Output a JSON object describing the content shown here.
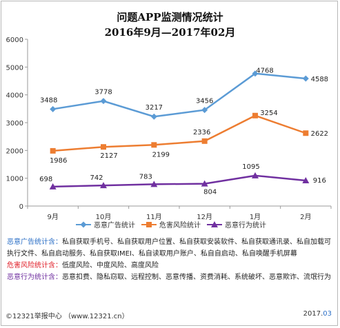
{
  "title": "问题APP监测情况统计",
  "subtitle": "2016年9月—2017年02月",
  "chart_data": {
    "type": "line",
    "categories": [
      "9月",
      "10月",
      "11月",
      "12月",
      "1月",
      "2月"
    ],
    "ylim": [
      0,
      6000
    ],
    "yticks": [
      "0",
      "1000",
      "2000",
      "3000",
      "4000",
      "5000",
      "6000"
    ],
    "grid": false,
    "legend_position": "bottom",
    "series": [
      {
        "name": "恶意广告统计",
        "values": [
          3488,
          3778,
          3217,
          3456,
          4768,
          4588
        ],
        "labels": [
          "3488",
          "3778",
          "3217",
          "3456",
          "4768",
          "4588"
        ],
        "color": "#5b9bd5"
      },
      {
        "name": "危害风险统计",
        "values": [
          1986,
          2127,
          2199,
          2336,
          3254,
          2622
        ],
        "labels": [
          "1986",
          "2127",
          "2199",
          "2336",
          "3254",
          "2622"
        ],
        "color": "#ed7d31"
      },
      {
        "name": "恶意行为统计",
        "values": [
          698,
          742,
          783,
          804,
          1095,
          916
        ],
        "labels": [
          "698",
          "742",
          "783",
          "804",
          "1095",
          "916"
        ],
        "color": "#7030a0"
      }
    ]
  },
  "notes": [
    {
      "key": "恶意广告统计含：",
      "key_color": "#2b6fc6",
      "text": "私自获取手机号、私自获取用户位置、私自获取安装软件、私自获取通讯录、私自加载可执行文件、私自启动服务、私自获取IMEI、私自读取用户账户、私自自启动、私自唤醒手机屏幕"
    },
    {
      "key": "危害风险统计含：",
      "key_color": "#e0202a",
      "text": "低度风险、中度风险、高度风险"
    },
    {
      "key": "恶意行为统计含：",
      "key_color": "#7030a0",
      "text": "恶意扣费、隐私窃取、远程控制、恶意传播、资费消耗、系统破坏、恶意欺诈、流氓行为"
    }
  ],
  "footer": {
    "left": "©12321举报中心  （www.12321.cn）",
    "right_year": "2017.",
    "right_month": "03"
  }
}
